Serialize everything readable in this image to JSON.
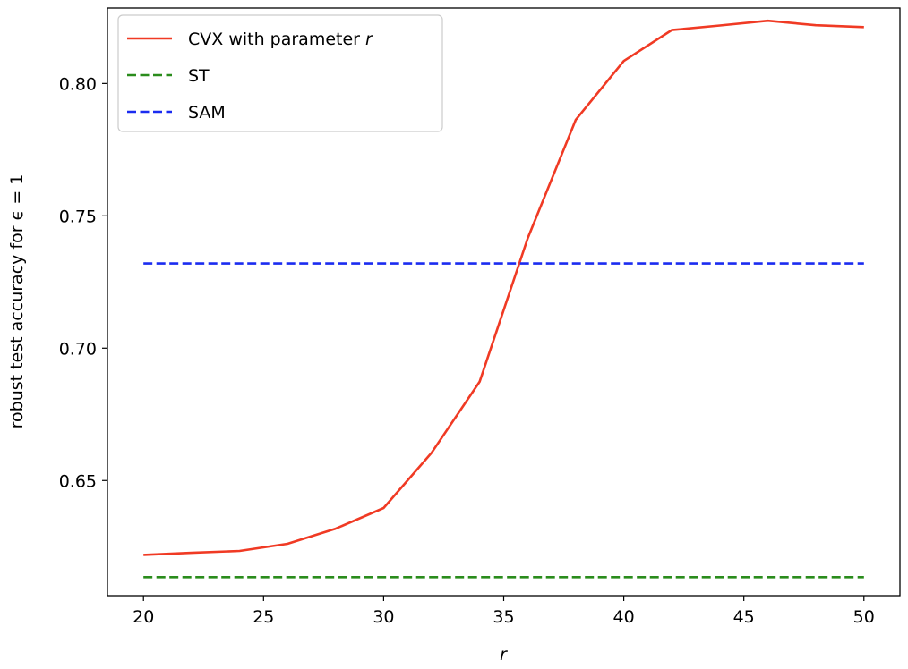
{
  "chart_data": {
    "type": "line",
    "xlabel": "r",
    "ylabel": "robust test accuracy for ϵ = 1",
    "xlim": [
      18.5,
      51.5
    ],
    "ylim": [
      0.6065,
      0.8285
    ],
    "xticks": [
      20,
      25,
      30,
      35,
      40,
      45,
      50
    ],
    "yticks": [
      0.65,
      0.7,
      0.75,
      0.8
    ],
    "ytick_labels": [
      "0.65",
      "0.70",
      "0.75",
      "0.80"
    ],
    "grid": false,
    "legend_position": "top-left",
    "x": [
      20,
      22,
      24,
      26,
      28,
      30,
      32,
      34,
      36,
      38,
      40,
      42,
      44,
      46,
      48,
      50
    ],
    "series": [
      {
        "name": "CVX with parameter r",
        "legend_prefix": "CVX with parameter ",
        "legend_var": "r",
        "style": "solid",
        "color": "#f03a24",
        "values": [
          0.6219,
          0.6227,
          0.6234,
          0.6261,
          0.6318,
          0.6396,
          0.6605,
          0.6874,
          0.7415,
          0.7863,
          0.8085,
          0.8202,
          0.8219,
          0.8237,
          0.822,
          0.8213
        ]
      },
      {
        "name": "ST",
        "legend_prefix": "ST",
        "legend_var": "",
        "style": "dashed",
        "color": "#2a8c1c",
        "values": [
          0.6135,
          0.6135,
          0.6135,
          0.6135,
          0.6135,
          0.6135,
          0.6135,
          0.6135,
          0.6135,
          0.6135,
          0.6135,
          0.6135,
          0.6135,
          0.6135,
          0.6135,
          0.6135
        ]
      },
      {
        "name": "SAM",
        "legend_prefix": "SAM",
        "legend_var": "",
        "style": "dashed",
        "color": "#1b2cf0",
        "values": [
          0.732,
          0.732,
          0.732,
          0.732,
          0.732,
          0.732,
          0.732,
          0.732,
          0.732,
          0.732,
          0.732,
          0.732,
          0.732,
          0.732,
          0.732,
          0.732
        ]
      }
    ]
  }
}
